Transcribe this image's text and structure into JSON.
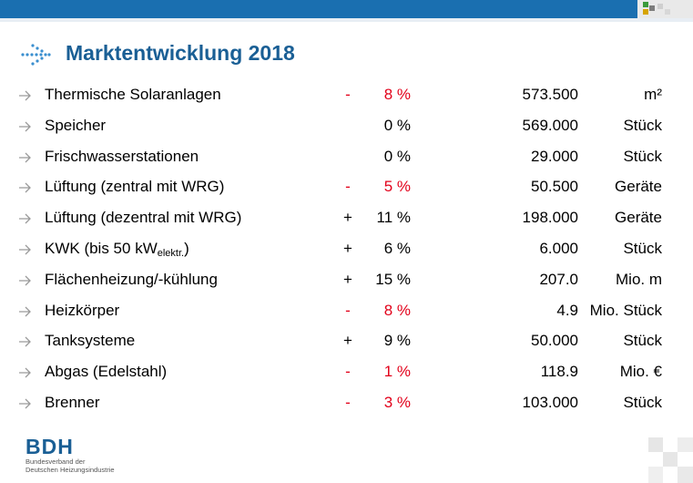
{
  "title": "Marktentwicklung 2018",
  "colors": {
    "accent": "#1a5f95",
    "negative": "#e2001a",
    "arrow": "#9a9a9a"
  },
  "rows": [
    {
      "label": "Thermische Solaranlagen",
      "label_sub": "",
      "label_after": "",
      "sign": "-",
      "pct": "8 %",
      "negative": true,
      "value": "573.500",
      "unit": "m²"
    },
    {
      "label": "Speicher",
      "label_sub": "",
      "label_after": "",
      "sign": "",
      "pct": "0 %",
      "negative": false,
      "value": "569.000",
      "unit": "Stück"
    },
    {
      "label": "Frischwasserstationen",
      "label_sub": "",
      "label_after": "",
      "sign": "",
      "pct": "0 %",
      "negative": false,
      "value": "29.000",
      "unit": "Stück"
    },
    {
      "label": "Lüftung (zentral mit WRG)",
      "label_sub": "",
      "label_after": "",
      "sign": "-",
      "pct": "5 %",
      "negative": true,
      "value": "50.500",
      "unit": "Geräte"
    },
    {
      "label": "Lüftung (dezentral mit WRG)",
      "label_sub": "",
      "label_after": "",
      "sign": "+",
      "pct": "11 %",
      "negative": false,
      "value": "198.000",
      "unit": "Geräte"
    },
    {
      "label": "KWK (bis 50 kW",
      "label_sub": "elektr.",
      "label_after": ")",
      "sign": "+",
      "pct": "6 %",
      "negative": false,
      "value": "6.000",
      "unit": "Stück"
    },
    {
      "label": "Flächenheizung/-kühlung",
      "label_sub": "",
      "label_after": "",
      "sign": "+",
      "pct": "15 %",
      "negative": false,
      "value": "207.0",
      "unit": "Mio. m"
    },
    {
      "label": "Heizkörper",
      "label_sub": "",
      "label_after": "",
      "sign": "-",
      "pct": "8 %",
      "negative": true,
      "value": "4.9",
      "unit": "Mio. Stück"
    },
    {
      "label": "Tanksysteme",
      "label_sub": "",
      "label_after": "",
      "sign": "+",
      "pct": "9 %",
      "negative": false,
      "value": "50.000",
      "unit": "Stück"
    },
    {
      "label": "Abgas (Edelstahl)",
      "label_sub": "",
      "label_after": "",
      "sign": "-",
      "pct": "1 %",
      "negative": true,
      "value": "118.9",
      "unit": "Mio. €"
    },
    {
      "label": "Brenner",
      "label_sub": "",
      "label_after": "",
      "sign": "-",
      "pct": "3 %",
      "negative": true,
      "value": "103.000",
      "unit": "Stück"
    }
  ],
  "logo": {
    "name": "BDH",
    "subtitle_line1": "Bundesverband der",
    "subtitle_line2": "Deutschen Heizungsindustrie"
  }
}
